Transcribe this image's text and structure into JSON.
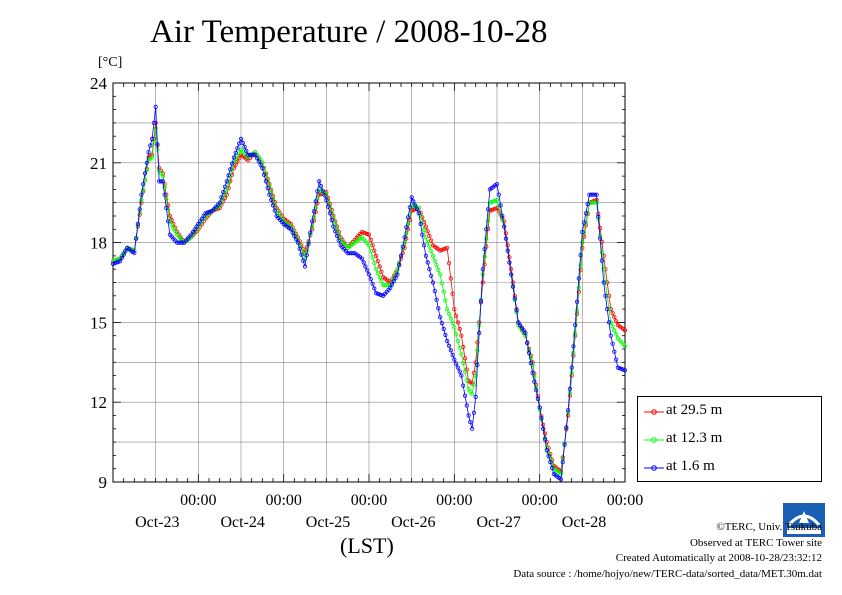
{
  "title": "Air Temperature / 2008-10-28",
  "chart_data": {
    "type": "line",
    "title": "Air Temperature / 2008-10-28",
    "ylabel": "[°C]",
    "xlabel": "(LST)",
    "ylim": [
      9,
      24
    ],
    "xlim": [
      0,
      144
    ],
    "y_ticks": [
      9,
      12,
      15,
      18,
      21,
      24
    ],
    "x_tick_labels": [
      {
        "time": "00:00",
        "date": "Oct-23"
      },
      {
        "time": "00:00",
        "date": "Oct-24"
      },
      {
        "time": "00:00",
        "date": "Oct-25"
      },
      {
        "time": "00:00",
        "date": "Oct-26"
      },
      {
        "time": "00:00",
        "date": "Oct-27"
      },
      {
        "time": "00:00",
        "date": "Oct-28"
      }
    ],
    "grid": true,
    "legend_position": "bottom-right outside",
    "series": [
      {
        "name": "at 29.5 m",
        "color": "#ff0000",
        "points": [
          [
            0,
            17.3
          ],
          [
            2,
            17.4
          ],
          [
            4,
            17.8
          ],
          [
            6,
            17.7
          ],
          [
            8,
            19.5
          ],
          [
            10,
            21.2
          ],
          [
            11,
            21.3
          ],
          [
            12,
            22.5
          ],
          [
            13,
            20.8
          ],
          [
            14,
            20.6
          ],
          [
            16,
            19.0
          ],
          [
            18,
            18.4
          ],
          [
            20,
            18.0
          ],
          [
            22,
            18.2
          ],
          [
            24,
            18.5
          ],
          [
            26,
            18.9
          ],
          [
            28,
            19.2
          ],
          [
            30,
            19.3
          ],
          [
            32,
            19.8
          ],
          [
            34,
            20.8
          ],
          [
            36,
            21.3
          ],
          [
            38,
            21.1
          ],
          [
            40,
            21.4
          ],
          [
            42,
            21.0
          ],
          [
            44,
            20.2
          ],
          [
            46,
            19.3
          ],
          [
            48,
            18.9
          ],
          [
            50,
            18.7
          ],
          [
            52,
            18.2
          ],
          [
            54,
            17.6
          ],
          [
            56,
            18.5
          ],
          [
            58,
            19.8
          ],
          [
            60,
            19.9
          ],
          [
            62,
            19.0
          ],
          [
            64,
            18.2
          ],
          [
            66,
            17.8
          ],
          [
            68,
            18.1
          ],
          [
            70,
            18.4
          ],
          [
            72,
            18.3
          ],
          [
            74,
            17.5
          ],
          [
            76,
            16.7
          ],
          [
            78,
            16.5
          ],
          [
            80,
            17.0
          ],
          [
            82,
            17.8
          ],
          [
            84,
            19.2
          ],
          [
            86,
            19.3
          ],
          [
            88,
            18.6
          ],
          [
            90,
            17.9
          ],
          [
            92,
            17.7
          ],
          [
            94,
            17.8
          ],
          [
            96,
            15.5
          ],
          [
            98,
            14.5
          ],
          [
            100,
            12.8
          ],
          [
            101,
            12.7
          ],
          [
            102,
            13.5
          ],
          [
            104,
            16.5
          ],
          [
            106,
            19.2
          ],
          [
            108,
            19.3
          ],
          [
            110,
            18.8
          ],
          [
            112,
            17.0
          ],
          [
            114,
            15.0
          ],
          [
            116,
            14.5
          ],
          [
            118,
            13.5
          ],
          [
            120,
            11.8
          ],
          [
            122,
            10.5
          ],
          [
            124,
            9.6
          ],
          [
            126,
            9.4
          ],
          [
            128,
            11.5
          ],
          [
            130,
            14.5
          ],
          [
            132,
            17.8
          ],
          [
            134,
            19.5
          ],
          [
            136,
            19.6
          ],
          [
            138,
            17.5
          ],
          [
            140,
            15.5
          ],
          [
            142,
            14.9
          ],
          [
            144,
            14.7
          ]
        ]
      },
      {
        "name": "at 12.3 m",
        "color": "#00ff00",
        "points": [
          [
            0,
            17.3
          ],
          [
            2,
            17.4
          ],
          [
            4,
            17.8
          ],
          [
            6,
            17.7
          ],
          [
            8,
            19.6
          ],
          [
            10,
            21.1
          ],
          [
            11,
            21.2
          ],
          [
            12,
            22.3
          ],
          [
            13,
            20.7
          ],
          [
            14,
            20.5
          ],
          [
            16,
            18.8
          ],
          [
            18,
            18.3
          ],
          [
            20,
            18.0
          ],
          [
            22,
            18.2
          ],
          [
            24,
            18.6
          ],
          [
            26,
            19.0
          ],
          [
            28,
            19.2
          ],
          [
            30,
            19.4
          ],
          [
            32,
            20.0
          ],
          [
            34,
            21.0
          ],
          [
            36,
            21.5
          ],
          [
            38,
            21.2
          ],
          [
            40,
            21.4
          ],
          [
            42,
            21.0
          ],
          [
            44,
            20.1
          ],
          [
            46,
            19.2
          ],
          [
            48,
            18.8
          ],
          [
            50,
            18.6
          ],
          [
            52,
            18.1
          ],
          [
            54,
            17.4
          ],
          [
            56,
            18.6
          ],
          [
            58,
            20.0
          ],
          [
            60,
            19.8
          ],
          [
            62,
            18.9
          ],
          [
            64,
            18.1
          ],
          [
            66,
            17.8
          ],
          [
            68,
            18.0
          ],
          [
            70,
            18.2
          ],
          [
            72,
            17.9
          ],
          [
            74,
            17.0
          ],
          [
            76,
            16.4
          ],
          [
            78,
            16.4
          ],
          [
            80,
            17.0
          ],
          [
            82,
            18.0
          ],
          [
            84,
            19.4
          ],
          [
            86,
            19.3
          ],
          [
            88,
            18.2
          ],
          [
            90,
            17.5
          ],
          [
            92,
            16.8
          ],
          [
            94,
            15.5
          ],
          [
            96,
            14.8
          ],
          [
            98,
            13.8
          ],
          [
            100,
            12.5
          ],
          [
            101,
            12.3
          ],
          [
            102,
            13.0
          ],
          [
            104,
            16.8
          ],
          [
            106,
            19.5
          ],
          [
            108,
            19.6
          ],
          [
            110,
            18.6
          ],
          [
            112,
            16.8
          ],
          [
            114,
            14.9
          ],
          [
            116,
            14.5
          ],
          [
            118,
            13.4
          ],
          [
            120,
            11.7
          ],
          [
            122,
            10.3
          ],
          [
            124,
            9.5
          ],
          [
            126,
            9.3
          ],
          [
            128,
            11.6
          ],
          [
            130,
            14.6
          ],
          [
            132,
            18.0
          ],
          [
            134,
            19.5
          ],
          [
            136,
            19.5
          ],
          [
            138,
            17.0
          ],
          [
            140,
            15.0
          ],
          [
            142,
            14.4
          ],
          [
            144,
            14.1
          ]
        ]
      },
      {
        "name": "at 1.6 m",
        "color": "#0000ff",
        "points": [
          [
            0,
            17.2
          ],
          [
            2,
            17.3
          ],
          [
            4,
            17.8
          ],
          [
            6,
            17.6
          ],
          [
            8,
            19.8
          ],
          [
            10,
            21.4
          ],
          [
            11,
            21.9
          ],
          [
            12,
            23.1
          ],
          [
            13,
            20.3
          ],
          [
            14,
            20.3
          ],
          [
            16,
            18.3
          ],
          [
            18,
            18.0
          ],
          [
            20,
            18.0
          ],
          [
            22,
            18.3
          ],
          [
            24,
            18.7
          ],
          [
            26,
            19.1
          ],
          [
            28,
            19.2
          ],
          [
            30,
            19.5
          ],
          [
            32,
            20.3
          ],
          [
            34,
            21.2
          ],
          [
            36,
            21.9
          ],
          [
            38,
            21.3
          ],
          [
            40,
            21.3
          ],
          [
            42,
            20.8
          ],
          [
            44,
            19.8
          ],
          [
            46,
            19.0
          ],
          [
            48,
            18.7
          ],
          [
            50,
            18.5
          ],
          [
            52,
            18.0
          ],
          [
            54,
            17.1
          ],
          [
            56,
            18.8
          ],
          [
            58,
            20.3
          ],
          [
            60,
            19.6
          ],
          [
            62,
            18.6
          ],
          [
            64,
            17.9
          ],
          [
            66,
            17.6
          ],
          [
            68,
            17.6
          ],
          [
            70,
            17.4
          ],
          [
            72,
            16.8
          ],
          [
            74,
            16.1
          ],
          [
            76,
            16.0
          ],
          [
            78,
            16.3
          ],
          [
            80,
            16.8
          ],
          [
            82,
            18.2
          ],
          [
            84,
            19.7
          ],
          [
            86,
            19.1
          ],
          [
            88,
            17.5
          ],
          [
            90,
            16.5
          ],
          [
            92,
            15.2
          ],
          [
            94,
            14.3
          ],
          [
            96,
            13.6
          ],
          [
            98,
            13.0
          ],
          [
            100,
            11.5
          ],
          [
            101,
            11.0
          ],
          [
            102,
            12.2
          ],
          [
            104,
            17.0
          ],
          [
            106,
            20.0
          ],
          [
            108,
            20.2
          ],
          [
            110,
            18.6
          ],
          [
            112,
            16.8
          ],
          [
            114,
            15.0
          ],
          [
            116,
            14.6
          ],
          [
            118,
            13.1
          ],
          [
            120,
            11.8
          ],
          [
            122,
            10.2
          ],
          [
            124,
            9.3
          ],
          [
            126,
            9.1
          ],
          [
            128,
            11.7
          ],
          [
            130,
            14.9
          ],
          [
            132,
            18.4
          ],
          [
            134,
            19.8
          ],
          [
            136,
            19.8
          ],
          [
            138,
            16.5
          ],
          [
            140,
            14.5
          ],
          [
            142,
            13.3
          ],
          [
            144,
            13.2
          ]
        ]
      }
    ]
  },
  "credits": {
    "copyright": "©TERC, Univ. Tsukuba",
    "observed": "Observed at TERC Tower site",
    "created": "Created Automatically at 2008-10-28/23:32:12",
    "source": "Data source : /home/hojyo/new/TERC-data/sorted_data/MET.30m.dat"
  }
}
